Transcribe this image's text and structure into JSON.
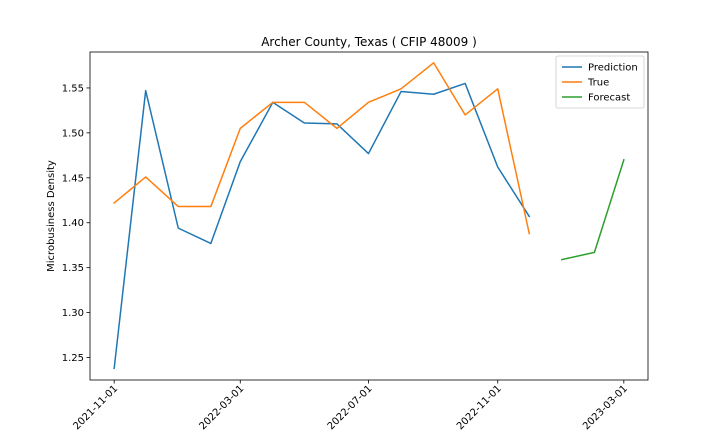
{
  "chart_data": {
    "type": "line",
    "title": "Archer County, Texas ( CFIP 48009 )",
    "xlabel": "",
    "ylabel": "Microbusiness Density",
    "ylim": [
      1.225,
      1.59
    ],
    "yticks": [
      1.25,
      1.3,
      1.35,
      1.4,
      1.45,
      1.5,
      1.55
    ],
    "xlim": [
      "2021-10-09",
      "2023-03-24"
    ],
    "xticks": [
      "2021-11-01",
      "2022-03-01",
      "2022-07-01",
      "2022-11-01",
      "2023-03-01"
    ],
    "grid": false,
    "legend_position": "top-right",
    "series": [
      {
        "name": "Prediction",
        "color": "#1f77b4",
        "x": [
          "2021-11-01",
          "2021-12-01",
          "2022-01-01",
          "2022-02-01",
          "2022-03-01",
          "2022-04-01",
          "2022-05-01",
          "2022-06-01",
          "2022-07-01",
          "2022-08-01",
          "2022-09-01",
          "2022-10-01",
          "2022-11-01",
          "2022-12-01"
        ],
        "values": [
          1.238,
          1.547,
          1.394,
          1.377,
          1.468,
          1.534,
          1.511,
          1.51,
          1.477,
          1.546,
          1.543,
          1.555,
          1.462,
          1.407
        ]
      },
      {
        "name": "True",
        "color": "#ff7f0e",
        "x": [
          "2021-11-01",
          "2021-12-01",
          "2022-01-01",
          "2022-02-01",
          "2022-03-01",
          "2022-04-01",
          "2022-05-01",
          "2022-06-01",
          "2022-07-01",
          "2022-08-01",
          "2022-09-01",
          "2022-10-01",
          "2022-11-01",
          "2022-12-01"
        ],
        "values": [
          1.422,
          1.451,
          1.418,
          1.418,
          1.505,
          1.534,
          1.534,
          1.505,
          1.534,
          1.549,
          1.578,
          1.52,
          1.549,
          1.388
        ]
      },
      {
        "name": "Forecast",
        "color": "#2ca02c",
        "x": [
          "2023-01-01",
          "2023-02-01",
          "2023-03-01"
        ],
        "values": [
          1.359,
          1.367,
          1.47
        ]
      }
    ]
  }
}
